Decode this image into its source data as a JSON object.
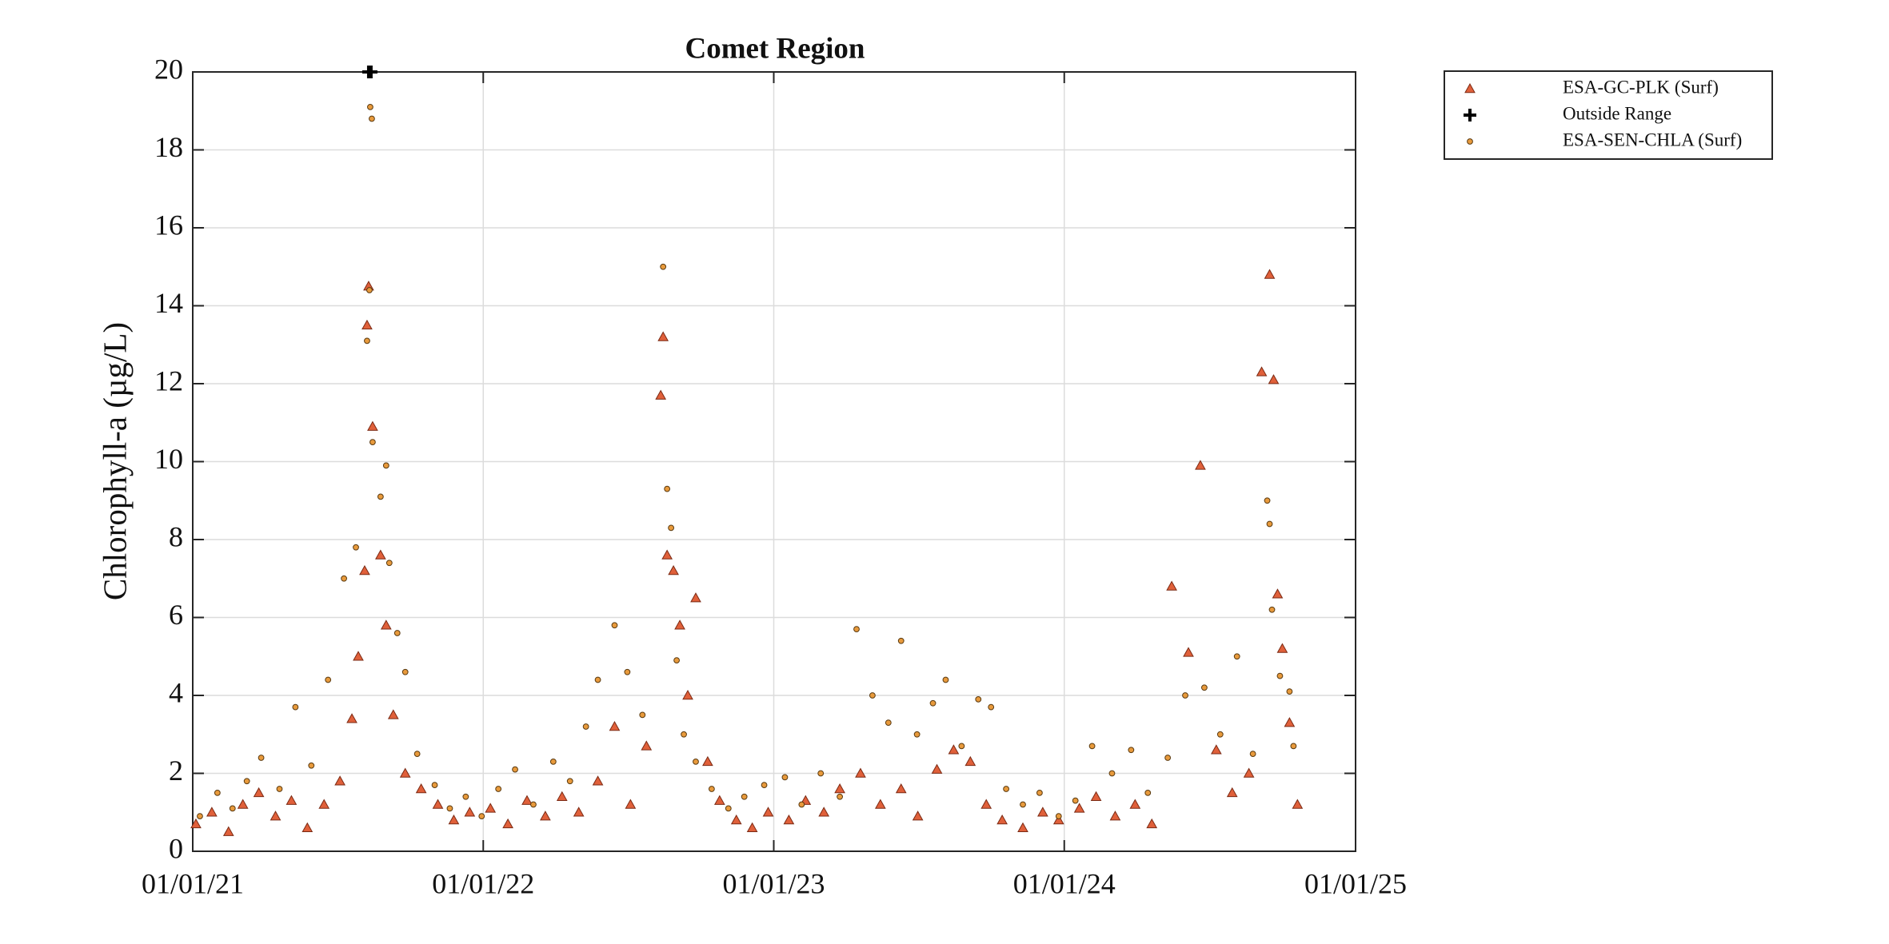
{
  "chart_data": {
    "type": "scatter",
    "title": "Comet Region",
    "y_label": "Chlorophyll-a (µg/L)",
    "xlim": [
      "01/01/21",
      "01/01/25"
    ],
    "xticks": [
      "01/01/21",
      "01/01/22",
      "01/01/23",
      "01/01/24",
      "01/01/25"
    ],
    "ylim": [
      0,
      20
    ],
    "yticks": [
      0,
      2,
      4,
      6,
      8,
      10,
      12,
      14,
      16,
      18,
      20
    ],
    "grid": true,
    "legend": "outside-top-right",
    "series": [
      {
        "name": "ESA-GC-PLK (Surf)",
        "marker": "triangle",
        "color": "#e0603a",
        "x": [
          "01/05/21",
          "01/25/21",
          "02/15/21",
          "03/05/21",
          "03/25/21",
          "04/15/21",
          "05/05/21",
          "05/25/21",
          "06/15/21",
          "07/05/21",
          "07/20/21",
          "07/28/21",
          "08/05/21",
          "08/10/21",
          "08/08/21",
          "08/15/21",
          "08/25/21",
          "09/01/21",
          "09/10/21",
          "09/25/21",
          "10/15/21",
          "11/05/21",
          "11/25/21",
          "12/15/21",
          "01/10/22",
          "02/01/22",
          "02/25/22",
          "03/20/22",
          "04/10/22",
          "05/01/22",
          "05/25/22",
          "06/15/22",
          "07/05/22",
          "07/25/22",
          "08/12/22",
          "08/15/22",
          "08/20/22",
          "08/28/22",
          "09/05/22",
          "09/15/22",
          "09/25/22",
          "10/10/22",
          "10/25/22",
          "11/15/22",
          "12/05/22",
          "12/25/22",
          "01/20/23",
          "02/10/23",
          "03/05/23",
          "03/25/23",
          "04/20/23",
          "05/15/23",
          "06/10/23",
          "07/01/23",
          "07/25/23",
          "08/15/23",
          "09/05/23",
          "09/25/23",
          "10/15/23",
          "11/10/23",
          "12/05/23",
          "12/25/23",
          "01/20/24",
          "02/10/24",
          "03/05/24",
          "03/30/24",
          "04/20/24",
          "05/15/24",
          "06/05/24",
          "06/20/24",
          "07/10/24",
          "07/30/24",
          "08/20/24",
          "09/05/24",
          "09/15/24",
          "09/20/24",
          "09/25/24",
          "10/01/24",
          "10/10/24",
          "10/20/24"
        ],
        "values": [
          0.7,
          1.0,
          0.5,
          1.2,
          1.5,
          0.9,
          1.3,
          0.6,
          1.2,
          1.8,
          3.4,
          5.0,
          7.2,
          14.5,
          13.5,
          10.9,
          7.6,
          5.8,
          3.5,
          2.0,
          1.6,
          1.2,
          0.8,
          1.0,
          1.1,
          0.7,
          1.3,
          0.9,
          1.4,
          1.0,
          1.8,
          3.2,
          1.2,
          2.7,
          11.7,
          13.2,
          7.6,
          7.2,
          5.8,
          4.0,
          6.5,
          2.3,
          1.3,
          0.8,
          0.6,
          1.0,
          0.8,
          1.3,
          1.0,
          1.6,
          2.0,
          1.2,
          1.6,
          0.9,
          2.1,
          2.6,
          2.3,
          1.2,
          0.8,
          0.6,
          1.0,
          0.8,
          1.1,
          1.4,
          0.9,
          1.2,
          0.7,
          6.8,
          5.1,
          9.9,
          2.6,
          1.5,
          2.0,
          12.3,
          14.8,
          12.1,
          6.6,
          5.2,
          3.3,
          1.2
        ]
      },
      {
        "name": "Outside Range",
        "marker": "plus",
        "color": "#000000",
        "x": [
          "08/10/21",
          "08/13/21"
        ],
        "values": [
          20,
          20
        ]
      },
      {
        "name": "ESA-SEN-CHLA (Surf)",
        "marker": "circle",
        "color": "#e89a3c",
        "x": [
          "01/10/21",
          "02/01/21",
          "02/20/21",
          "03/10/21",
          "03/28/21",
          "04/20/21",
          "05/10/21",
          "05/30/21",
          "06/20/21",
          "07/10/21",
          "07/25/21",
          "08/08/21",
          "08/12/21",
          "08/14/21",
          "08/11/21",
          "08/15/21",
          "08/25/21",
          "09/01/21",
          "09/05/21",
          "09/15/21",
          "09/25/21",
          "10/10/21",
          "11/01/21",
          "11/20/21",
          "12/10/21",
          "12/30/21",
          "01/20/22",
          "02/10/22",
          "03/05/22",
          "03/30/22",
          "04/20/22",
          "05/10/22",
          "05/25/22",
          "06/15/22",
          "07/01/22",
          "07/20/22",
          "08/15/22",
          "08/20/22",
          "08/25/22",
          "09/01/22",
          "09/10/22",
          "09/25/22",
          "10/15/22",
          "11/05/22",
          "11/25/22",
          "12/20/22",
          "01/15/23",
          "02/05/23",
          "03/01/23",
          "03/25/23",
          "04/15/23",
          "05/05/23",
          "05/25/23",
          "06/10/23",
          "06/30/23",
          "07/20/23",
          "08/05/23",
          "08/25/23",
          "09/15/23",
          "10/01/23",
          "10/20/23",
          "11/10/23",
          "12/01/23",
          "12/25/23",
          "01/15/24",
          "02/05/24",
          "03/01/24",
          "03/25/24",
          "04/15/24",
          "05/10/24",
          "06/01/24",
          "06/25/24",
          "07/15/24",
          "08/05/24",
          "08/25/24",
          "09/12/24",
          "09/15/24",
          "09/18/24",
          "09/28/24",
          "10/10/24",
          "10/15/24"
        ],
        "values": [
          0.9,
          1.5,
          1.1,
          1.8,
          2.4,
          1.6,
          3.7,
          2.2,
          4.4,
          7.0,
          7.8,
          13.1,
          19.1,
          18.8,
          14.4,
          10.5,
          9.1,
          9.9,
          7.4,
          5.6,
          4.6,
          2.5,
          1.7,
          1.1,
          1.4,
          0.9,
          1.6,
          2.1,
          1.2,
          2.3,
          1.8,
          3.2,
          4.4,
          5.8,
          4.6,
          3.5,
          15.0,
          9.3,
          8.3,
          4.9,
          3.0,
          2.3,
          1.6,
          1.1,
          1.4,
          1.7,
          1.9,
          1.2,
          2.0,
          1.4,
          5.7,
          4.0,
          3.3,
          5.4,
          3.0,
          3.8,
          4.4,
          2.7,
          3.9,
          3.7,
          1.6,
          1.2,
          1.5,
          0.9,
          1.3,
          2.7,
          2.0,
          2.6,
          1.5,
          2.4,
          4.0,
          4.2,
          3.0,
          5.0,
          2.5,
          9.0,
          8.4,
          6.2,
          4.5,
          4.1,
          2.7
        ]
      }
    ]
  }
}
